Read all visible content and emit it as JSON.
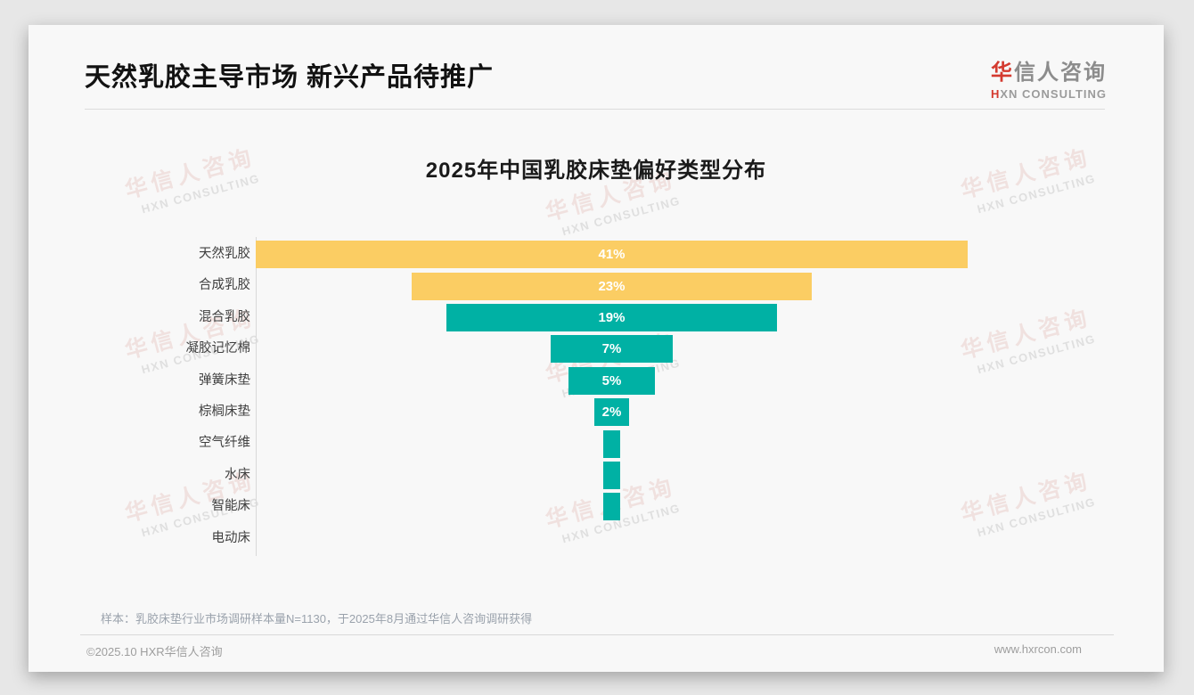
{
  "header": {
    "title": "天然乳胶主导市场 新兴产品待推广",
    "logo_cn_accent": "华",
    "logo_cn_rest": "信人咨询",
    "logo_en_accent": "H",
    "logo_en_rest": "XN CONSULTING"
  },
  "chart_data": {
    "type": "bar",
    "variant": "centered-funnel-horizontal",
    "title": "2025年中国乳胶床垫偏好类型分布",
    "categories": [
      "天然乳胶",
      "合成乳胶",
      "混合乳胶",
      "凝胶记忆棉",
      "弹簧床垫",
      "棕榈床垫",
      "空气纤维",
      "水床",
      "智能床",
      "电动床"
    ],
    "values": [
      41,
      23,
      19,
      7,
      5,
      2,
      1,
      1,
      1,
      0
    ],
    "bar_labels": [
      "41%",
      "23%",
      "19%",
      "7%",
      "5%",
      "2%",
      "",
      "",
      "",
      ""
    ],
    "unit": "%",
    "xlim": [
      0,
      41
    ],
    "grid": false,
    "legend": "none",
    "bar_colors": [
      "#FBCD63",
      "#FBCD63",
      "#00B1A4",
      "#00B1A4",
      "#00B1A4",
      "#00B1A4",
      "#00B1A4",
      "#00B1A4",
      "#00B1A4",
      "#00B1A4"
    ],
    "value_label_color": "#FFFFFF"
  },
  "footer": {
    "footnote": "样本：乳胶床垫行业市场调研样本量N=1130，于2025年8月通过华信人咨询调研获得",
    "copyright": "©2025.10 HXR华信人咨询",
    "website": "www.hxrcon.com"
  },
  "watermark": {
    "line1": "华信人咨询",
    "line2": "HXN CONSULTING"
  },
  "colors": {
    "accent_red": "#D43A2F",
    "bar_yellow": "#FBCD63",
    "bar_teal": "#00B1A4"
  }
}
